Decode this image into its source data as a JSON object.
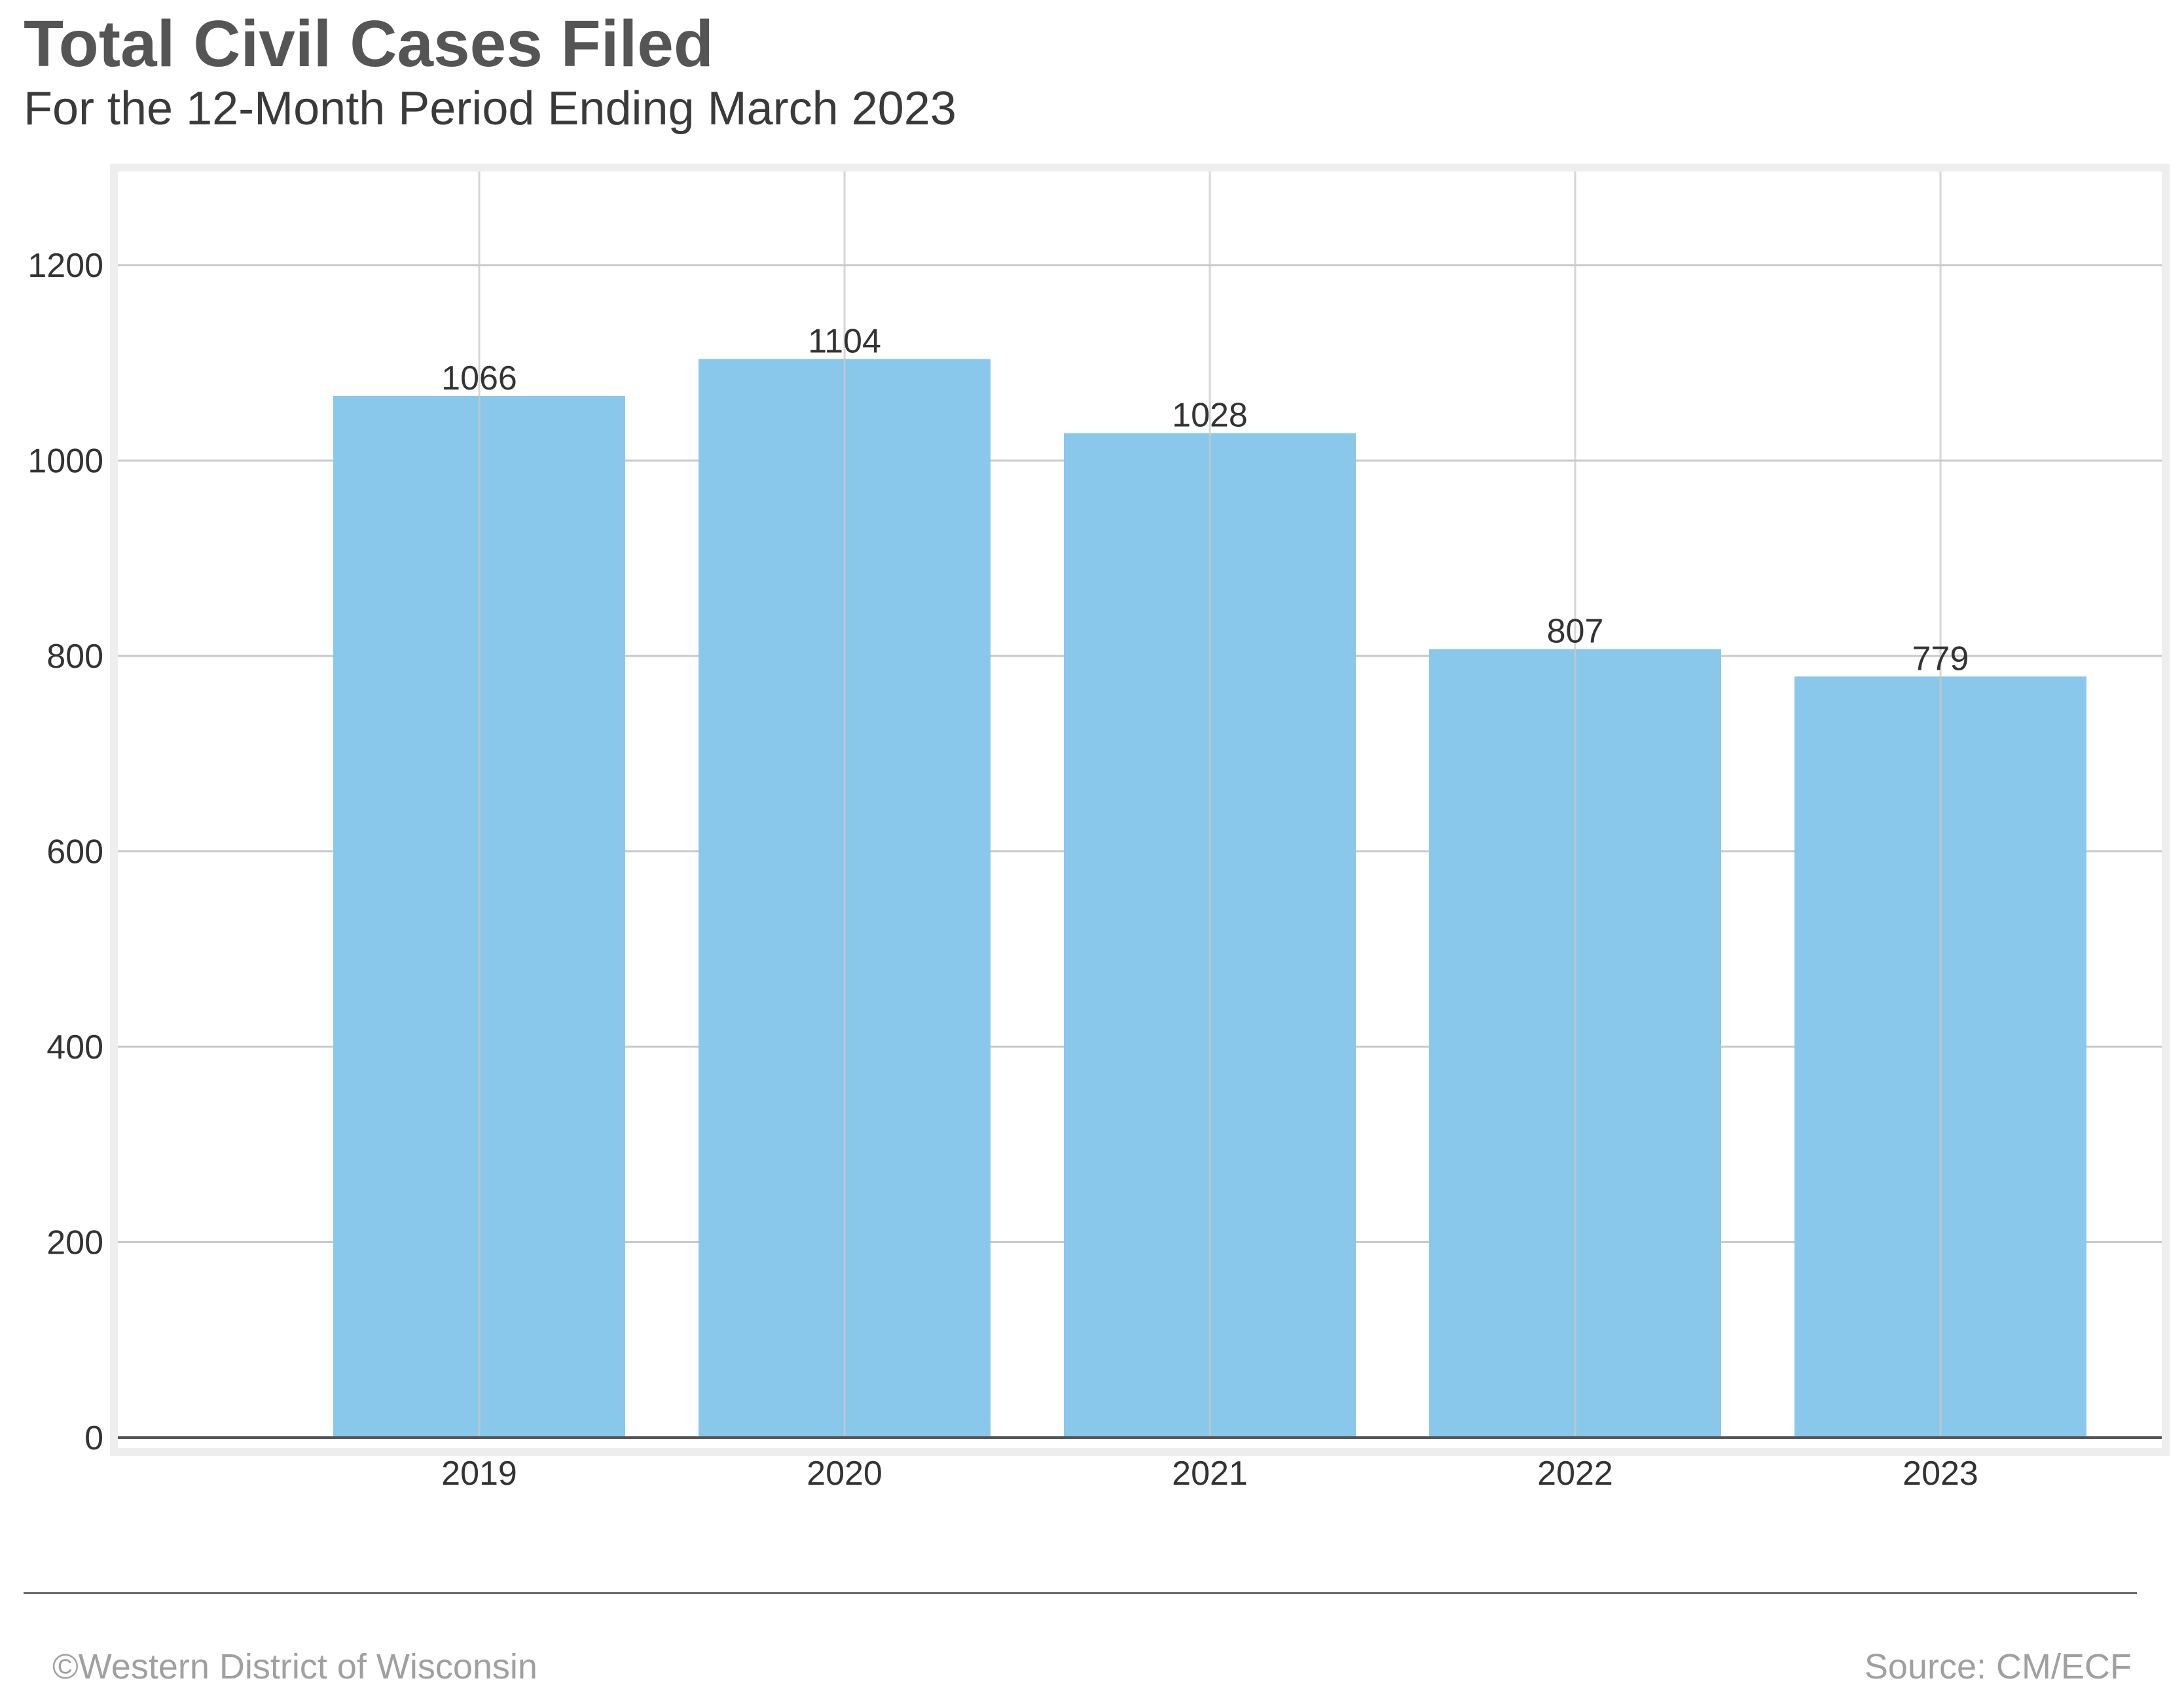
{
  "header": {
    "title": "Total Civil Cases Filed",
    "subtitle": "For the 12-Month Period Ending March 2023"
  },
  "footer": {
    "copyright": "©Western District of Wisconsin",
    "source": "Source: CM/ECF"
  },
  "colors": {
    "bar": "#89C8EA",
    "grid": "#c8c8c8",
    "frame": "#eeeeee",
    "axis": "#555555",
    "text": "#333333"
  },
  "chart_data": {
    "type": "bar",
    "title": "Total Civil Cases Filed",
    "subtitle": "For the 12-Month Period Ending March 2023",
    "categories": [
      "2019",
      "2020",
      "2021",
      "2022",
      "2023"
    ],
    "values": [
      1066,
      1104,
      1028,
      807,
      779
    ],
    "value_labels": [
      "1066",
      "1104",
      "1028",
      "807",
      "779"
    ],
    "yticks": [
      0,
      200,
      400,
      600,
      800,
      1000,
      1200
    ],
    "ytick_labels": [
      "0",
      "200",
      "400",
      "600",
      "800",
      "1000",
      "1200"
    ],
    "ylim": [
      0,
      1300
    ],
    "xlabel": "",
    "ylabel": "",
    "grid": true,
    "legend": "none"
  }
}
